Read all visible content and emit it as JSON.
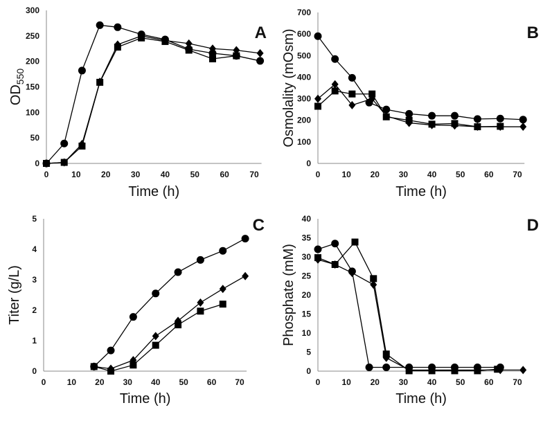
{
  "chart_data": [
    {
      "type": "line",
      "panel": "A",
      "title": "",
      "xlabel": "Time (h)",
      "ylabel": "OD",
      "ylabel_sub": "550",
      "xlim": [
        0,
        72
      ],
      "ylim": [
        0,
        300
      ],
      "xticks": [
        "0",
        "10",
        "20",
        "30",
        "40",
        "50",
        "60",
        "70"
      ],
      "yticks": [
        "0",
        "50",
        "100",
        "150",
        "200",
        "250",
        "300"
      ],
      "series": [
        {
          "name": "circle",
          "marker": "circle",
          "x": [
            0,
            6,
            12,
            18,
            24,
            32,
            40,
            48,
            56,
            64,
            72
          ],
          "y": [
            0,
            39,
            182,
            271,
            267,
            253,
            243,
            224,
            216,
            211,
            201
          ]
        },
        {
          "name": "diamond",
          "marker": "diamond",
          "x": [
            0,
            6,
            12,
            18,
            24,
            32,
            40,
            48,
            56,
            64,
            72
          ],
          "y": [
            0,
            2,
            38,
            160,
            233,
            250,
            241,
            235,
            225,
            222,
            216
          ]
        },
        {
          "name": "square",
          "marker": "square",
          "x": [
            0,
            6,
            12,
            18,
            24,
            32,
            40,
            48,
            56,
            64
          ],
          "y": [
            0,
            2,
            34,
            159,
            228,
            246,
            239,
            222,
            205,
            211
          ]
        }
      ]
    },
    {
      "type": "line",
      "panel": "B",
      "title": "",
      "xlabel": "Time (h)",
      "ylabel": "Osmolality (mOsm)",
      "xlim": [
        0,
        72
      ],
      "ylim": [
        0,
        700
      ],
      "xticks": [
        "0",
        "10",
        "20",
        "30",
        "40",
        "50",
        "60",
        "70"
      ],
      "yticks": [
        "0",
        "100",
        "200",
        "300",
        "400",
        "500",
        "600",
        "700"
      ],
      "series": [
        {
          "name": "circle",
          "marker": "circle",
          "x": [
            0,
            6,
            12,
            18,
            24,
            32,
            40,
            48,
            56,
            64,
            72
          ],
          "y": [
            590,
            484,
            397,
            282,
            250,
            230,
            221,
            221,
            206,
            208,
            203
          ]
        },
        {
          "name": "diamond",
          "marker": "diamond",
          "x": [
            0,
            6,
            12,
            19,
            24,
            32,
            40,
            48,
            56,
            64,
            72
          ],
          "y": [
            300,
            367,
            270,
            300,
            220,
            188,
            178,
            176,
            170,
            170,
            170
          ]
        },
        {
          "name": "square",
          "marker": "square",
          "x": [
            0,
            6,
            12,
            19,
            24,
            32,
            40,
            48,
            56,
            64
          ],
          "y": [
            265,
            336,
            322,
            322,
            216,
            200,
            182,
            185,
            170,
            172
          ]
        }
      ]
    },
    {
      "type": "line",
      "panel": "C",
      "title": "",
      "xlabel": "Time (h)",
      "ylabel": "Titer (g/L)",
      "xlim": [
        0,
        72
      ],
      "ylim": [
        0,
        5
      ],
      "xticks": [
        "0",
        "10",
        "20",
        "30",
        "40",
        "50",
        "60",
        "70"
      ],
      "yticks": [
        "0",
        "1",
        "2",
        "3",
        "4",
        "5"
      ],
      "series": [
        {
          "name": "circle",
          "marker": "circle",
          "x": [
            18,
            24,
            32,
            40,
            48,
            56,
            64,
            72
          ],
          "y": [
            0.15,
            0.68,
            1.78,
            2.55,
            3.25,
            3.65,
            3.95,
            4.35
          ]
        },
        {
          "name": "diamond",
          "marker": "diamond",
          "x": [
            18,
            24,
            32,
            40,
            48,
            56,
            64,
            72
          ],
          "y": [
            0.15,
            0.08,
            0.36,
            1.15,
            1.65,
            2.25,
            2.7,
            3.12
          ]
        },
        {
          "name": "square",
          "marker": "square",
          "x": [
            18,
            24,
            32,
            40,
            48,
            56,
            64
          ],
          "y": [
            0.15,
            0.0,
            0.2,
            0.85,
            1.52,
            1.97,
            2.2
          ]
        }
      ]
    },
    {
      "type": "line",
      "panel": "D",
      "title": "",
      "xlabel": "Time (h)",
      "ylabel": "Phosphate (mM)",
      "xlim": [
        0,
        72
      ],
      "ylim": [
        0,
        40
      ],
      "xticks": [
        "0",
        "10",
        "20",
        "30",
        "40",
        "50",
        "60",
        "70"
      ],
      "yticks": [
        "0",
        "5",
        "10",
        "15",
        "20",
        "25",
        "30",
        "35",
        "40"
      ],
      "series": [
        {
          "name": "circle",
          "marker": "circle",
          "x": [
            0,
            6,
            12,
            18,
            24,
            32,
            40,
            48,
            56,
            64
          ],
          "y": [
            32,
            33.5,
            26.2,
            1,
            1,
            1,
            1,
            1,
            1,
            1
          ]
        },
        {
          "name": "diamond",
          "marker": "diamond",
          "x": [
            0,
            6,
            12,
            19.5,
            24,
            32,
            40,
            48,
            56,
            64,
            72
          ],
          "y": [
            29.3,
            28,
            25.8,
            22.7,
            3.5,
            0.3,
            0.3,
            0.3,
            0.3,
            0.3,
            0.3
          ]
        },
        {
          "name": "square",
          "marker": "square",
          "x": [
            0,
            6,
            13,
            19.5,
            24,
            32,
            40,
            48,
            56,
            63
          ],
          "y": [
            29.8,
            28,
            33.9,
            24.3,
            4.5,
            0.1,
            0.1,
            0.1,
            0.1,
            0.5
          ]
        }
      ]
    }
  ]
}
